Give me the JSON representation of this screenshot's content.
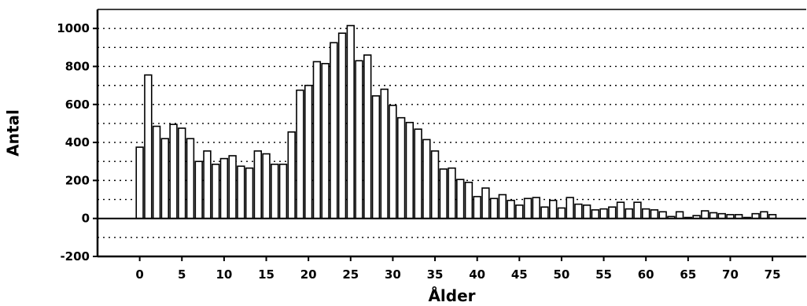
{
  "chart_data": {
    "type": "bar",
    "title": "",
    "xlabel": "Ålder",
    "ylabel": "Antal",
    "xlim": [
      -5,
      79
    ],
    "ylim": [
      -200,
      1100
    ],
    "x_ticks": [
      0,
      5,
      10,
      15,
      20,
      25,
      30,
      35,
      40,
      45,
      50,
      55,
      60,
      65,
      70,
      75
    ],
    "y_ticks": [
      -200,
      0,
      200,
      400,
      600,
      800,
      1000
    ],
    "grid": "horizontal dotted at every 100",
    "legend": "none",
    "colors": {
      "bar_fill": "#ffffff",
      "bar_stroke": "#000000",
      "grid": "#000000"
    },
    "series": [
      {
        "x": [
          0,
          1,
          2,
          3,
          4,
          5,
          6,
          7,
          8,
          9,
          10,
          11,
          12,
          13,
          14,
          15,
          16,
          17,
          18,
          19,
          20,
          21,
          22,
          23,
          24,
          25,
          26,
          27,
          28,
          29,
          30,
          31,
          32,
          33,
          34,
          35,
          36,
          37,
          38,
          39,
          40,
          41,
          42,
          43,
          44,
          45,
          46,
          47,
          48,
          49,
          50,
          51,
          52,
          53,
          54,
          55,
          56,
          57,
          58,
          59,
          60,
          61,
          62,
          63,
          64,
          65,
          66,
          67,
          68,
          69,
          70,
          71,
          72,
          73,
          74,
          75
        ],
        "values": [
          375,
          755,
          485,
          420,
          495,
          475,
          420,
          300,
          355,
          285,
          315,
          330,
          275,
          265,
          355,
          340,
          285,
          285,
          455,
          675,
          700,
          825,
          815,
          925,
          975,
          1015,
          830,
          860,
          645,
          680,
          595,
          530,
          505,
          470,
          415,
          355,
          260,
          265,
          205,
          190,
          115,
          160,
          105,
          125,
          95,
          70,
          105,
          110,
          60,
          95,
          55,
          110,
          75,
          70,
          45,
          50,
          60,
          85,
          50,
          85,
          50,
          45,
          35,
          10,
          35,
          5,
          15,
          40,
          30,
          25,
          20,
          20,
          5,
          25,
          35,
          20
        ]
      }
    ]
  }
}
